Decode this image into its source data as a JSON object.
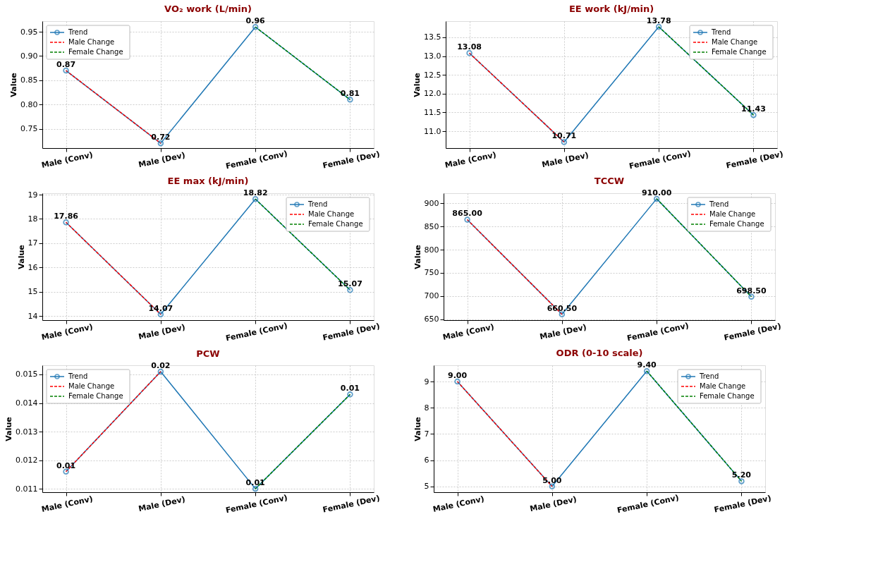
{
  "chart_data": [
    {
      "type": "line",
      "title": "VO₂ work (L/min)",
      "ylabel": "Value",
      "categories": [
        "Male (Conv)",
        "Male (Dev)",
        "Female (Conv)",
        "Female (Dev)"
      ],
      "ylim": [
        0.71,
        0.972
      ],
      "yticks": [
        {
          "value": 0.75,
          "label": "0.75"
        },
        {
          "value": 0.8,
          "label": "0.80"
        },
        {
          "value": 0.85,
          "label": "0.85"
        },
        {
          "value": 0.9,
          "label": "0.90"
        },
        {
          "value": 0.95,
          "label": "0.95"
        }
      ],
      "grid": true,
      "legend": "top left",
      "series": [
        {
          "name": "Trend",
          "color": "#1f77b4",
          "values": [
            0.87,
            0.72,
            0.96,
            0.81
          ],
          "marker": "circle",
          "line_style": "solid",
          "value_labels": [
            "0.87",
            "0.72",
            "0.96",
            "0.81"
          ]
        },
        {
          "name": "Male Change",
          "color": "#ff0000",
          "values": [
            0.87,
            0.72,
            null,
            null
          ],
          "line_style": "dashed"
        },
        {
          "name": "Female Change",
          "color": "#008000",
          "values": [
            null,
            null,
            0.96,
            0.81
          ],
          "line_style": "dashed"
        }
      ]
    },
    {
      "type": "line",
      "title": "EE work (kJ/min)",
      "ylabel": "Value",
      "categories": [
        "Male (Conv)",
        "Male (Dev)",
        "Female (Conv)",
        "Female (Dev)"
      ],
      "ylim": [
        10.55,
        13.93
      ],
      "yticks": [
        {
          "value": 11,
          "label": "11.0"
        },
        11.5,
        {
          "value": 12,
          "label": "12.0"
        },
        12.5,
        {
          "value": 13,
          "label": "13.0"
        },
        13.5
      ],
      "grid": true,
      "legend": "top right",
      "series": [
        {
          "name": "Trend",
          "color": "#1f77b4",
          "values": [
            13.08,
            10.71,
            13.78,
            11.43
          ],
          "marker": "circle",
          "line_style": "solid",
          "value_labels": [
            "13.08",
            "10.71",
            "13.78",
            "11.43"
          ]
        },
        {
          "name": "Male Change",
          "color": "#ff0000",
          "values": [
            13.08,
            10.71,
            null,
            null
          ],
          "line_style": "dashed"
        },
        {
          "name": "Female Change",
          "color": "#008000",
          "values": [
            null,
            null,
            13.78,
            11.43
          ],
          "line_style": "dashed"
        }
      ]
    },
    {
      "type": "line",
      "title": "EE max (kJ/min)",
      "ylabel": "Value",
      "categories": [
        "Male (Conv)",
        "Male (Dev)",
        "Female (Conv)",
        "Female (Dev)"
      ],
      "ylim": [
        13.83,
        19.06
      ],
      "yticks": [
        14,
        15,
        16,
        17,
        18,
        19
      ],
      "grid": true,
      "legend": "top right",
      "series": [
        {
          "name": "Trend",
          "color": "#1f77b4",
          "values": [
            17.86,
            14.07,
            18.82,
            15.07
          ],
          "marker": "circle",
          "line_style": "solid",
          "value_labels": [
            "17.86",
            "14.07",
            "18.82",
            "15.07"
          ]
        },
        {
          "name": "Male Change",
          "color": "#ff0000",
          "values": [
            17.86,
            14.07,
            null,
            null
          ],
          "line_style": "dashed"
        },
        {
          "name": "Female Change",
          "color": "#008000",
          "values": [
            null,
            null,
            18.82,
            15.07
          ],
          "line_style": "dashed"
        }
      ]
    },
    {
      "type": "line",
      "title": "TCCW",
      "ylabel": "Value",
      "categories": [
        "Male (Conv)",
        "Male (Dev)",
        "Female (Conv)",
        "Female (Dev)"
      ],
      "ylim": [
        648,
        922
      ],
      "yticks": [
        650,
        700,
        750,
        800,
        850,
        900
      ],
      "grid": true,
      "legend": "top right",
      "series": [
        {
          "name": "Trend",
          "color": "#1f77b4",
          "values": [
            865,
            660.5,
            910,
            698.5
          ],
          "marker": "circle",
          "line_style": "solid",
          "value_labels": [
            "865.00",
            "660.50",
            "910.00",
            "698.50"
          ]
        },
        {
          "name": "Male Change",
          "color": "#ff0000",
          "values": [
            865,
            660.5,
            null,
            null
          ],
          "line_style": "dashed"
        },
        {
          "name": "Female Change",
          "color": "#008000",
          "values": [
            null,
            null,
            910,
            698.5
          ],
          "line_style": "dashed"
        }
      ]
    },
    {
      "type": "line",
      "title": "PCW",
      "ylabel": "Value",
      "categories": [
        "Male (Conv)",
        "Male (Dev)",
        "Female (Conv)",
        "Female (Dev)"
      ],
      "ylim": [
        0.01088,
        0.01532
      ],
      "yticks": [
        0.011,
        0.012,
        0.013,
        0.014,
        0.015
      ],
      "grid": true,
      "legend": "top left",
      "series": [
        {
          "name": "Trend",
          "color": "#1f77b4",
          "values": [
            0.0116,
            0.0151,
            0.011,
            0.0143
          ],
          "marker": "circle",
          "line_style": "solid",
          "value_labels": [
            "0.01",
            "0.02",
            "0.01",
            "0.01"
          ]
        },
        {
          "name": "Male Change",
          "color": "#ff0000",
          "values": [
            0.0116,
            0.0151,
            null,
            null
          ],
          "line_style": "dashed"
        },
        {
          "name": "Female Change",
          "color": "#008000",
          "values": [
            null,
            null,
            0.011,
            0.0143
          ],
          "line_style": "dashed"
        }
      ]
    },
    {
      "type": "line",
      "title": "ODR (0-10 scale)",
      "ylabel": "Value",
      "categories": [
        "Male (Conv)",
        "Male (Dev)",
        "Female (Conv)",
        "Female (Dev)"
      ],
      "ylim": [
        4.78,
        9.62
      ],
      "yticks": [
        5,
        6,
        7,
        8,
        9
      ],
      "grid": true,
      "legend": "top right",
      "series": [
        {
          "name": "Trend",
          "color": "#1f77b4",
          "values": [
            9.0,
            5.0,
            9.4,
            5.2
          ],
          "marker": "circle",
          "line_style": "solid",
          "value_labels": [
            "9.00",
            "5.00",
            "9.40",
            "5.20"
          ]
        },
        {
          "name": "Male Change",
          "color": "#ff0000",
          "values": [
            9.0,
            5.0,
            null,
            null
          ],
          "line_style": "dashed"
        },
        {
          "name": "Female Change",
          "color": "#008000",
          "values": [
            null,
            null,
            9.4,
            5.2
          ],
          "line_style": "dashed"
        }
      ]
    }
  ]
}
